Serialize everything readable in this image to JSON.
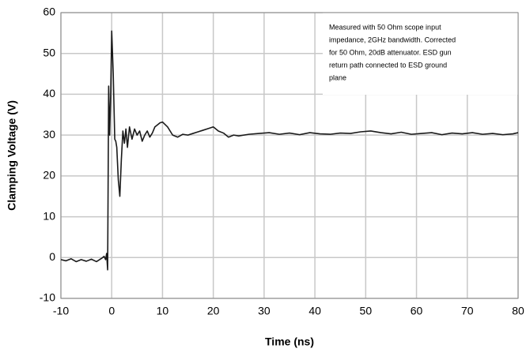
{
  "chart_data": {
    "type": "line",
    "xlabel": "Time (ns)",
    "ylabel": "Clamping Voltage (V)",
    "annotation": [
      "Measured with 50 Ohm scope input",
      "impedance, 2GHz bandwidth.  Corrected",
      "for 50 Ohm, 20dB attenuator. ESD gun",
      "return path connected to ESD ground",
      "plane"
    ],
    "color": "#1a1a1a",
    "grid": true,
    "xlim": [
      -10,
      80
    ],
    "ylim": [
      -10,
      60
    ],
    "xticks": [
      -10,
      0,
      10,
      20,
      30,
      40,
      50,
      60,
      70,
      80
    ],
    "yticks": [
      -10,
      0,
      10,
      20,
      30,
      40,
      50,
      60
    ],
    "x": [
      -10,
      -9,
      -8,
      -7,
      -6,
      -5,
      -4,
      -3,
      -2,
      -1.5,
      -1.2,
      -1,
      -0.8,
      -0.6,
      -0.4,
      -0.2,
      0,
      0.3,
      0.6,
      0.8,
      1,
      1.3,
      1.6,
      1.9,
      2.2,
      2.5,
      2.8,
      3.1,
      3.5,
      4,
      4.5,
      5,
      5.5,
      6,
      6.5,
      7,
      7.5,
      8,
      8.5,
      9,
      9.5,
      10,
      11,
      12,
      13,
      14,
      15,
      16,
      17,
      18,
      19,
      20,
      21,
      22,
      23,
      24,
      25,
      27,
      29,
      31,
      33,
      35,
      37,
      39,
      41,
      43,
      45,
      47,
      49,
      51,
      53,
      55,
      57,
      59,
      61,
      63,
      65,
      67,
      69,
      71,
      73,
      75,
      77,
      79,
      80
    ],
    "values": [
      -0.5,
      -0.8,
      -0.3,
      -1,
      -0.5,
      -0.9,
      -0.4,
      -1,
      -0.2,
      0.3,
      -0.5,
      1,
      -3,
      42,
      30,
      40,
      55.5,
      45,
      29,
      28.5,
      27,
      19,
      15,
      24,
      31,
      28,
      31.5,
      27,
      32,
      29,
      31.5,
      30,
      31,
      28.5,
      30,
      31,
      29.5,
      30.5,
      32,
      32.5,
      33,
      33.2,
      32,
      30,
      29.5,
      30.2,
      30,
      30.4,
      30.8,
      31.2,
      31.6,
      32,
      31,
      30.5,
      29.5,
      30,
      29.8,
      30.2,
      30.4,
      30.6,
      30.2,
      30.5,
      30.1,
      30.6,
      30.3,
      30.2,
      30.5,
      30.4,
      30.8,
      31,
      30.6,
      30.3,
      30.7,
      30.2,
      30.4,
      30.6,
      30.1,
      30.5,
      30.3,
      30.6,
      30.2,
      30.4,
      30.1,
      30.3,
      30.6
    ]
  }
}
